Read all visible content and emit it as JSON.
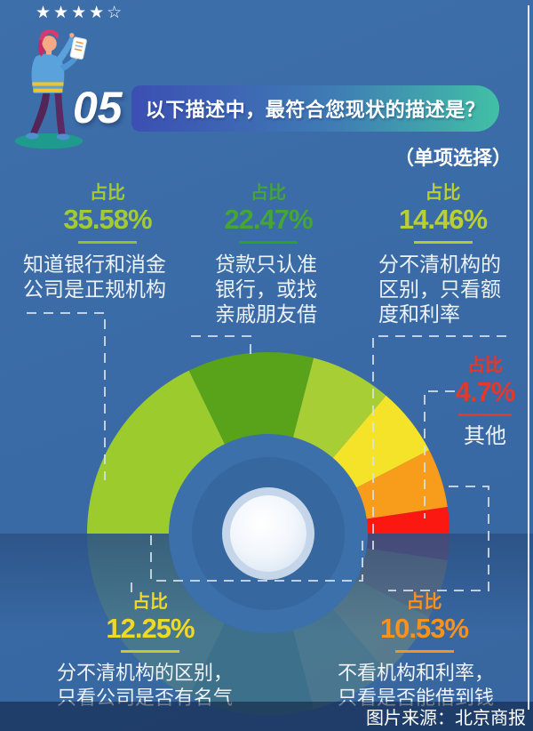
{
  "header": {
    "stars_filled": "★★★★",
    "stars_empty": "☆",
    "number": "05",
    "title": "以下描述中，最符合您现状的描述是？",
    "subtitle": "（单项选择）"
  },
  "chart_data": {
    "type": "pie",
    "variant": "semicircle-gauge-donut",
    "arc_degrees": 180,
    "title": "以下描述中，最符合您现状的描述是？",
    "note": "（单项选择）",
    "unit": "%",
    "label_prefix": "占比",
    "order": "left-to-right",
    "segments": [
      {
        "label": "知道银行和消金公司是正规机构",
        "value": 35.58,
        "color": "#9ccb2d"
      },
      {
        "label": "贷款只认准银行，或找亲戚朋友借",
        "value": 22.47,
        "color": "#58a319"
      },
      {
        "label": "分不清机构的区别，只看额度和利率",
        "value": 14.46,
        "color": "#a8ce36"
      },
      {
        "label": "分不清机构的区别，只看公司是否有名气",
        "value": 12.25,
        "color": "#f5e329"
      },
      {
        "label": "不看机构和利率，只看是否能借到钱",
        "value": 10.53,
        "color": "#f89c1b"
      },
      {
        "label": "其他",
        "value": 4.7,
        "color": "#fb1810"
      }
    ]
  },
  "callouts": {
    "c1": {
      "prefix": "占比",
      "value": "35.58%",
      "color": "#a4ca31",
      "rule_color": "#8cc22c",
      "lines": [
        "知道银行和消金",
        "公司是正规机构"
      ]
    },
    "c2": {
      "prefix": "占比",
      "value": "22.47%",
      "color": "#44a636",
      "rule_color": "#2f9e2a",
      "lines": [
        "贷款只认准",
        "银行，或找",
        "亲戚朋友借"
      ]
    },
    "c3": {
      "prefix": "占比",
      "value": "14.46%",
      "color": "#b9cf33",
      "rule_color": "#b2cb2f",
      "lines": [
        "分不清机构的",
        "区别，只看额",
        "度和利率"
      ]
    },
    "c4": {
      "prefix": "占比",
      "value": "4.7%",
      "color": "#e6372c",
      "rule_color": "#e6372c",
      "lines": [
        "其他"
      ]
    },
    "c5": {
      "prefix": "占比",
      "value": "12.25%",
      "color": "#eed928",
      "rule_color": "#d1c32a",
      "lines": [
        "分不清机构的区别，",
        "只看公司是否有名气"
      ]
    },
    "c6": {
      "prefix": "占比",
      "value": "10.53%",
      "color": "#f79120",
      "rule_color": "#f79120",
      "lines": [
        "不看机构和利率，",
        "只看是否能借到钱"
      ]
    }
  },
  "footer": {
    "credit": "图片来源：北京商报"
  },
  "palette": {
    "background": "#3a6ba7",
    "inner_ring": "#3c70ab",
    "inner_disc": "#36679e",
    "title_pill_left": "#3c4fb3",
    "title_pill_right": "#41c0a6"
  }
}
